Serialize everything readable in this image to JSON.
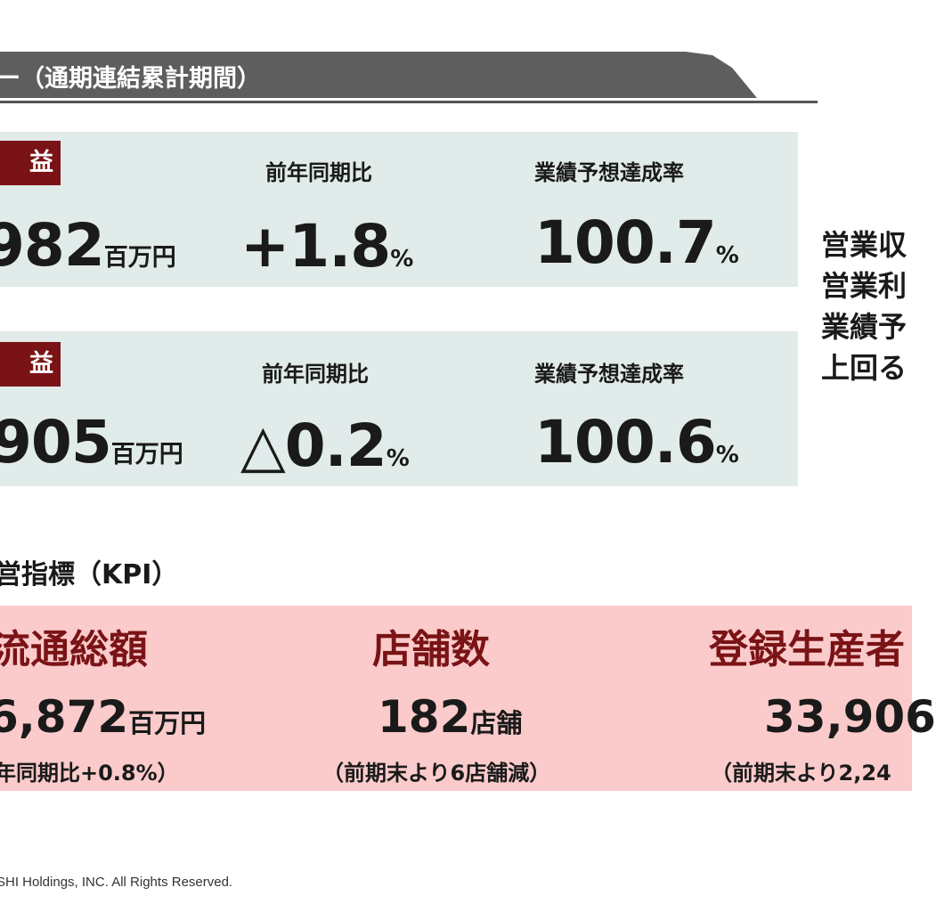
{
  "header": {
    "title": "ー（通期連結累計期間）"
  },
  "results": [
    {
      "label": "益",
      "value": "982",
      "value_unit": "百万円",
      "yoy_label": "前年同期比",
      "yoy_value": "+1.8",
      "yoy_unit": "%",
      "achieve_label": "業績予想達成率",
      "achieve_value": "100.7",
      "achieve_unit": "%"
    },
    {
      "label": "益",
      "value": "905",
      "value_unit": "百万円",
      "yoy_label": "前年同期比",
      "yoy_value": "△0.2",
      "yoy_unit": "%",
      "achieve_label": "業績予想達成率",
      "achieve_value": "100.6",
      "achieve_unit": "%"
    }
  ],
  "side_note": [
    "営業収",
    "営業利",
    "業績予",
    "上回る"
  ],
  "kpi": {
    "heading": "営指標（KPI）",
    "items": [
      {
        "title": "流通総額",
        "value": "6,872",
        "unit": "百万円",
        "sub": "年同期比+0.8%）"
      },
      {
        "title": "店舗数",
        "value": "182",
        "unit": "店舗",
        "sub": "（前期末より6店舗減）"
      },
      {
        "title": "登録生産者",
        "value": "33,906",
        "unit": "",
        "sub": "（前期末より2,24"
      }
    ]
  },
  "colors": {
    "header_band": "#5e5e5e",
    "panel_bg": "#e1ebea",
    "label_bg": "#7a1316",
    "kpi_bg": "#fbcbcb",
    "kpi_title": "#7a1316"
  },
  "footer": {
    "copyright": "SHI Holdings, INC.  All Rights Reserved."
  }
}
